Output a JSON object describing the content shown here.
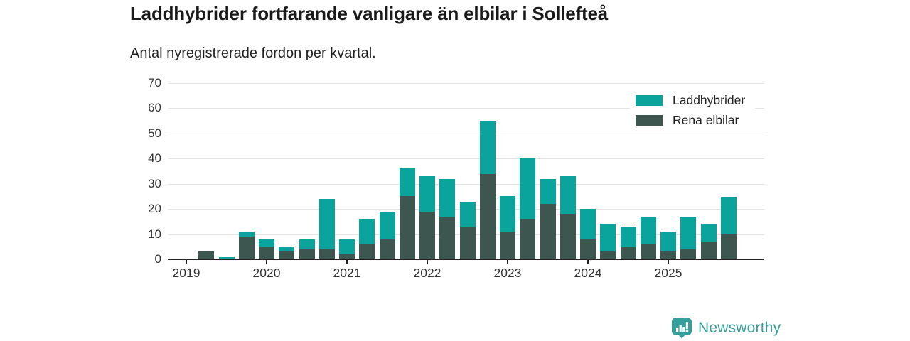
{
  "header": {
    "title": "Laddhybrider fortfarande vanligare än elbilar i Sollefteå",
    "subtitle": "Antal nyregistrerade fordon per kvartal."
  },
  "colors": {
    "laddhybrider": "#0aa49d",
    "rena_elbilar": "#3d564f",
    "axis": "#222222",
    "gridline": "#e3e3e3",
    "tick_text": "#333333",
    "logo": "#35a09a"
  },
  "legend": {
    "items": [
      {
        "label": "Laddhybrider",
        "color": "#0aa49d"
      },
      {
        "label": "Rena elbilar",
        "color": "#3d564f"
      }
    ]
  },
  "chart_data": {
    "type": "bar",
    "stacked": true,
    "x": [
      "2019 Q1",
      "2019 Q2",
      "2019 Q3",
      "2019 Q4",
      "2020 Q1",
      "2020 Q2",
      "2020 Q3",
      "2020 Q4",
      "2021 Q1",
      "2021 Q2",
      "2021 Q3",
      "2021 Q4",
      "2022 Q1",
      "2022 Q2",
      "2022 Q3",
      "2022 Q4",
      "2023 Q1",
      "2023 Q2",
      "2023 Q3",
      "2023 Q4",
      "2024 Q1",
      "2024 Q2",
      "2024 Q3",
      "2024 Q4",
      "2025 Q1",
      "2025 Q2",
      "2025 Q3",
      "2025 Q4"
    ],
    "series": [
      {
        "name": "Rena elbilar",
        "color": "#3d564f",
        "values": [
          0,
          3,
          0,
          9,
          5,
          3,
          4,
          4,
          2,
          6,
          8,
          25,
          19,
          17,
          13,
          34,
          11,
          16,
          22,
          18,
          8,
          3,
          5,
          6,
          3,
          4,
          7,
          10
        ]
      },
      {
        "name": "Laddhybrider",
        "color": "#0aa49d",
        "values": [
          0,
          0,
          1,
          2,
          3,
          2,
          4,
          20,
          6,
          10,
          11,
          11,
          14,
          15,
          10,
          21,
          14,
          24,
          10,
          15,
          12,
          11,
          8,
          11,
          8,
          13,
          7,
          15
        ]
      }
    ],
    "totals": [
      0,
      3,
      1,
      11,
      8,
      5,
      8,
      24,
      8,
      16,
      19,
      36,
      33,
      32,
      23,
      55,
      25,
      40,
      32,
      33,
      20,
      14,
      13,
      17,
      11,
      17,
      14,
      25
    ],
    "title": "Laddhybrider fortfarande vanligare än elbilar i Sollefteå",
    "subtitle": "Antal nyregistrerade fordon per kvartal.",
    "xlabel": "",
    "ylabel": "",
    "x_tick_labels": [
      "2019",
      "2020",
      "2021",
      "2022",
      "2023",
      "2024",
      "2025"
    ],
    "y_ticks": [
      0,
      10,
      20,
      30,
      40,
      50,
      60,
      70
    ],
    "ylim": [
      0,
      70
    ],
    "grid": true,
    "legend_position": "top-right"
  },
  "footer": {
    "brand": "Newsworthy"
  }
}
